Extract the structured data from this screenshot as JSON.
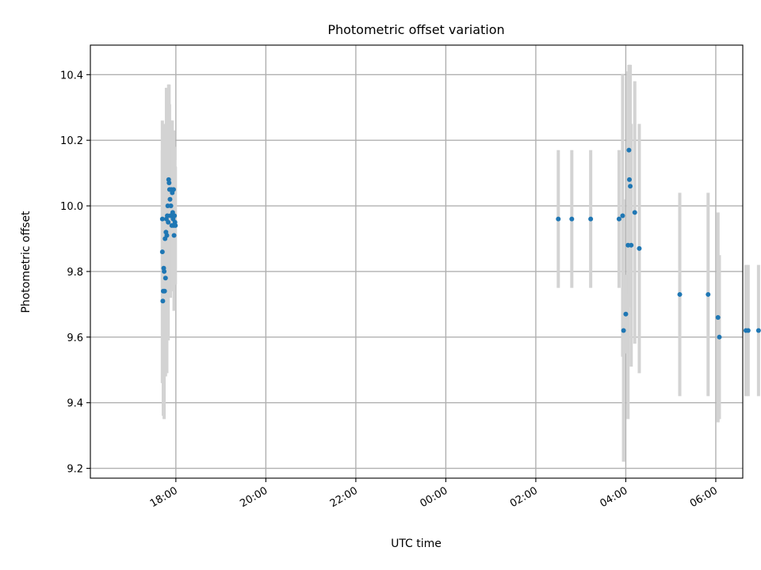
{
  "chart_data": {
    "type": "scatter",
    "title": "Photometric offset variation",
    "xlabel": "UTC time",
    "ylabel": "Photometric offset",
    "x_unit": "hours since 00:00 UTC",
    "xlim": [
      -7.9,
      6.6
    ],
    "ylim": [
      9.17,
      10.49
    ],
    "x_ticks": [
      {
        "value": -6,
        "label": "18:00"
      },
      {
        "value": -4,
        "label": "20:00"
      },
      {
        "value": -2,
        "label": "22:00"
      },
      {
        "value": 0,
        "label": "00:00"
      },
      {
        "value": 2,
        "label": "02:00"
      },
      {
        "value": 4,
        "label": "04:00"
      },
      {
        "value": 6,
        "label": "06:00"
      }
    ],
    "y_ticks": [
      {
        "value": 9.2,
        "label": "9.2"
      },
      {
        "value": 9.4,
        "label": "9.4"
      },
      {
        "value": 9.6,
        "label": "9.6"
      },
      {
        "value": 9.8,
        "label": "9.8"
      },
      {
        "value": 10.0,
        "label": "10.0"
      },
      {
        "value": 10.2,
        "label": "10.2"
      },
      {
        "value": 10.4,
        "label": "10.4"
      }
    ],
    "grid": true,
    "marker_color": "#1f77b4",
    "errorbar_color": "#d3d3d3",
    "points": [
      {
        "x": -6.3,
        "y": 9.96,
        "err": 0.21
      },
      {
        "x": -6.3,
        "y": 9.86,
        "err": 0.4
      },
      {
        "x": -6.29,
        "y": 9.71,
        "err": 0.25
      },
      {
        "x": -6.28,
        "y": 9.74,
        "err": 0.38
      },
      {
        "x": -6.27,
        "y": 9.81,
        "err": 0.33
      },
      {
        "x": -6.26,
        "y": 9.8,
        "err": 0.45
      },
      {
        "x": -6.25,
        "y": 9.74,
        "err": 0.2
      },
      {
        "x": -6.24,
        "y": 9.9,
        "err": 0.35
      },
      {
        "x": -6.23,
        "y": 9.78,
        "err": 0.3
      },
      {
        "x": -6.22,
        "y": 9.92,
        "err": 0.28
      },
      {
        "x": -6.21,
        "y": 9.96,
        "err": 0.4
      },
      {
        "x": -6.2,
        "y": 9.91,
        "err": 0.42
      },
      {
        "x": -6.19,
        "y": 9.97,
        "err": 0.33
      },
      {
        "x": -6.18,
        "y": 10.0,
        "err": 0.31
      },
      {
        "x": -6.17,
        "y": 9.95,
        "err": 0.36
      },
      {
        "x": -6.16,
        "y": 10.08,
        "err": 0.29
      },
      {
        "x": -6.15,
        "y": 10.07,
        "err": 0.3
      },
      {
        "x": -6.14,
        "y": 10.05,
        "err": 0.26
      },
      {
        "x": -6.13,
        "y": 10.02,
        "err": 0.24
      },
      {
        "x": -6.12,
        "y": 9.97,
        "err": 0.25
      },
      {
        "x": -6.11,
        "y": 10.0,
        "err": 0.23
      },
      {
        "x": -6.1,
        "y": 10.05,
        "err": 0.21
      },
      {
        "x": -6.09,
        "y": 9.94,
        "err": 0.2
      },
      {
        "x": -6.08,
        "y": 10.04,
        "err": 0.22
      },
      {
        "x": -6.07,
        "y": 9.98,
        "err": 0.2
      },
      {
        "x": -6.06,
        "y": 9.96,
        "err": 0.19
      },
      {
        "x": -6.05,
        "y": 9.94,
        "err": 0.2
      },
      {
        "x": -6.05,
        "y": 10.05,
        "err": 0.18
      },
      {
        "x": -6.04,
        "y": 9.91,
        "err": 0.23
      },
      {
        "x": -6.03,
        "y": 9.97,
        "err": 0.21
      },
      {
        "x": -6.02,
        "y": 9.95,
        "err": 0.19
      },
      {
        "x": -6.01,
        "y": 9.94,
        "err": 0.18
      },
      {
        "x": 2.5,
        "y": 9.96,
        "err": 0.21
      },
      {
        "x": 2.8,
        "y": 9.96,
        "err": 0.21
      },
      {
        "x": 3.22,
        "y": 9.96,
        "err": 0.21
      },
      {
        "x": 3.85,
        "y": 9.96,
        "err": 0.21
      },
      {
        "x": 3.93,
        "y": 9.97,
        "err": 0.43
      },
      {
        "x": 3.95,
        "y": 9.62,
        "err": 0.4
      },
      {
        "x": 4.0,
        "y": 9.67,
        "err": 0.12
      },
      {
        "x": 4.05,
        "y": 9.88,
        "err": 0.53
      },
      {
        "x": 4.07,
        "y": 10.17,
        "err": 0.26
      },
      {
        "x": 4.08,
        "y": 10.08,
        "err": 0.35
      },
      {
        "x": 4.1,
        "y": 10.06,
        "err": 0.37
      },
      {
        "x": 4.12,
        "y": 9.88,
        "err": 0.37
      },
      {
        "x": 4.2,
        "y": 9.98,
        "err": 0.4
      },
      {
        "x": 4.3,
        "y": 9.87,
        "err": 0.38
      },
      {
        "x": 5.2,
        "y": 9.73,
        "err": 0.31
      },
      {
        "x": 5.83,
        "y": 9.73,
        "err": 0.31
      },
      {
        "x": 6.05,
        "y": 9.66,
        "err": 0.32
      },
      {
        "x": 6.08,
        "y": 9.6,
        "err": 0.25
      },
      {
        "x": 6.67,
        "y": 9.62,
        "err": 0.2
      },
      {
        "x": 6.72,
        "y": 9.62,
        "err": 0.2
      },
      {
        "x": 6.95,
        "y": 9.62,
        "err": 0.2
      }
    ]
  }
}
